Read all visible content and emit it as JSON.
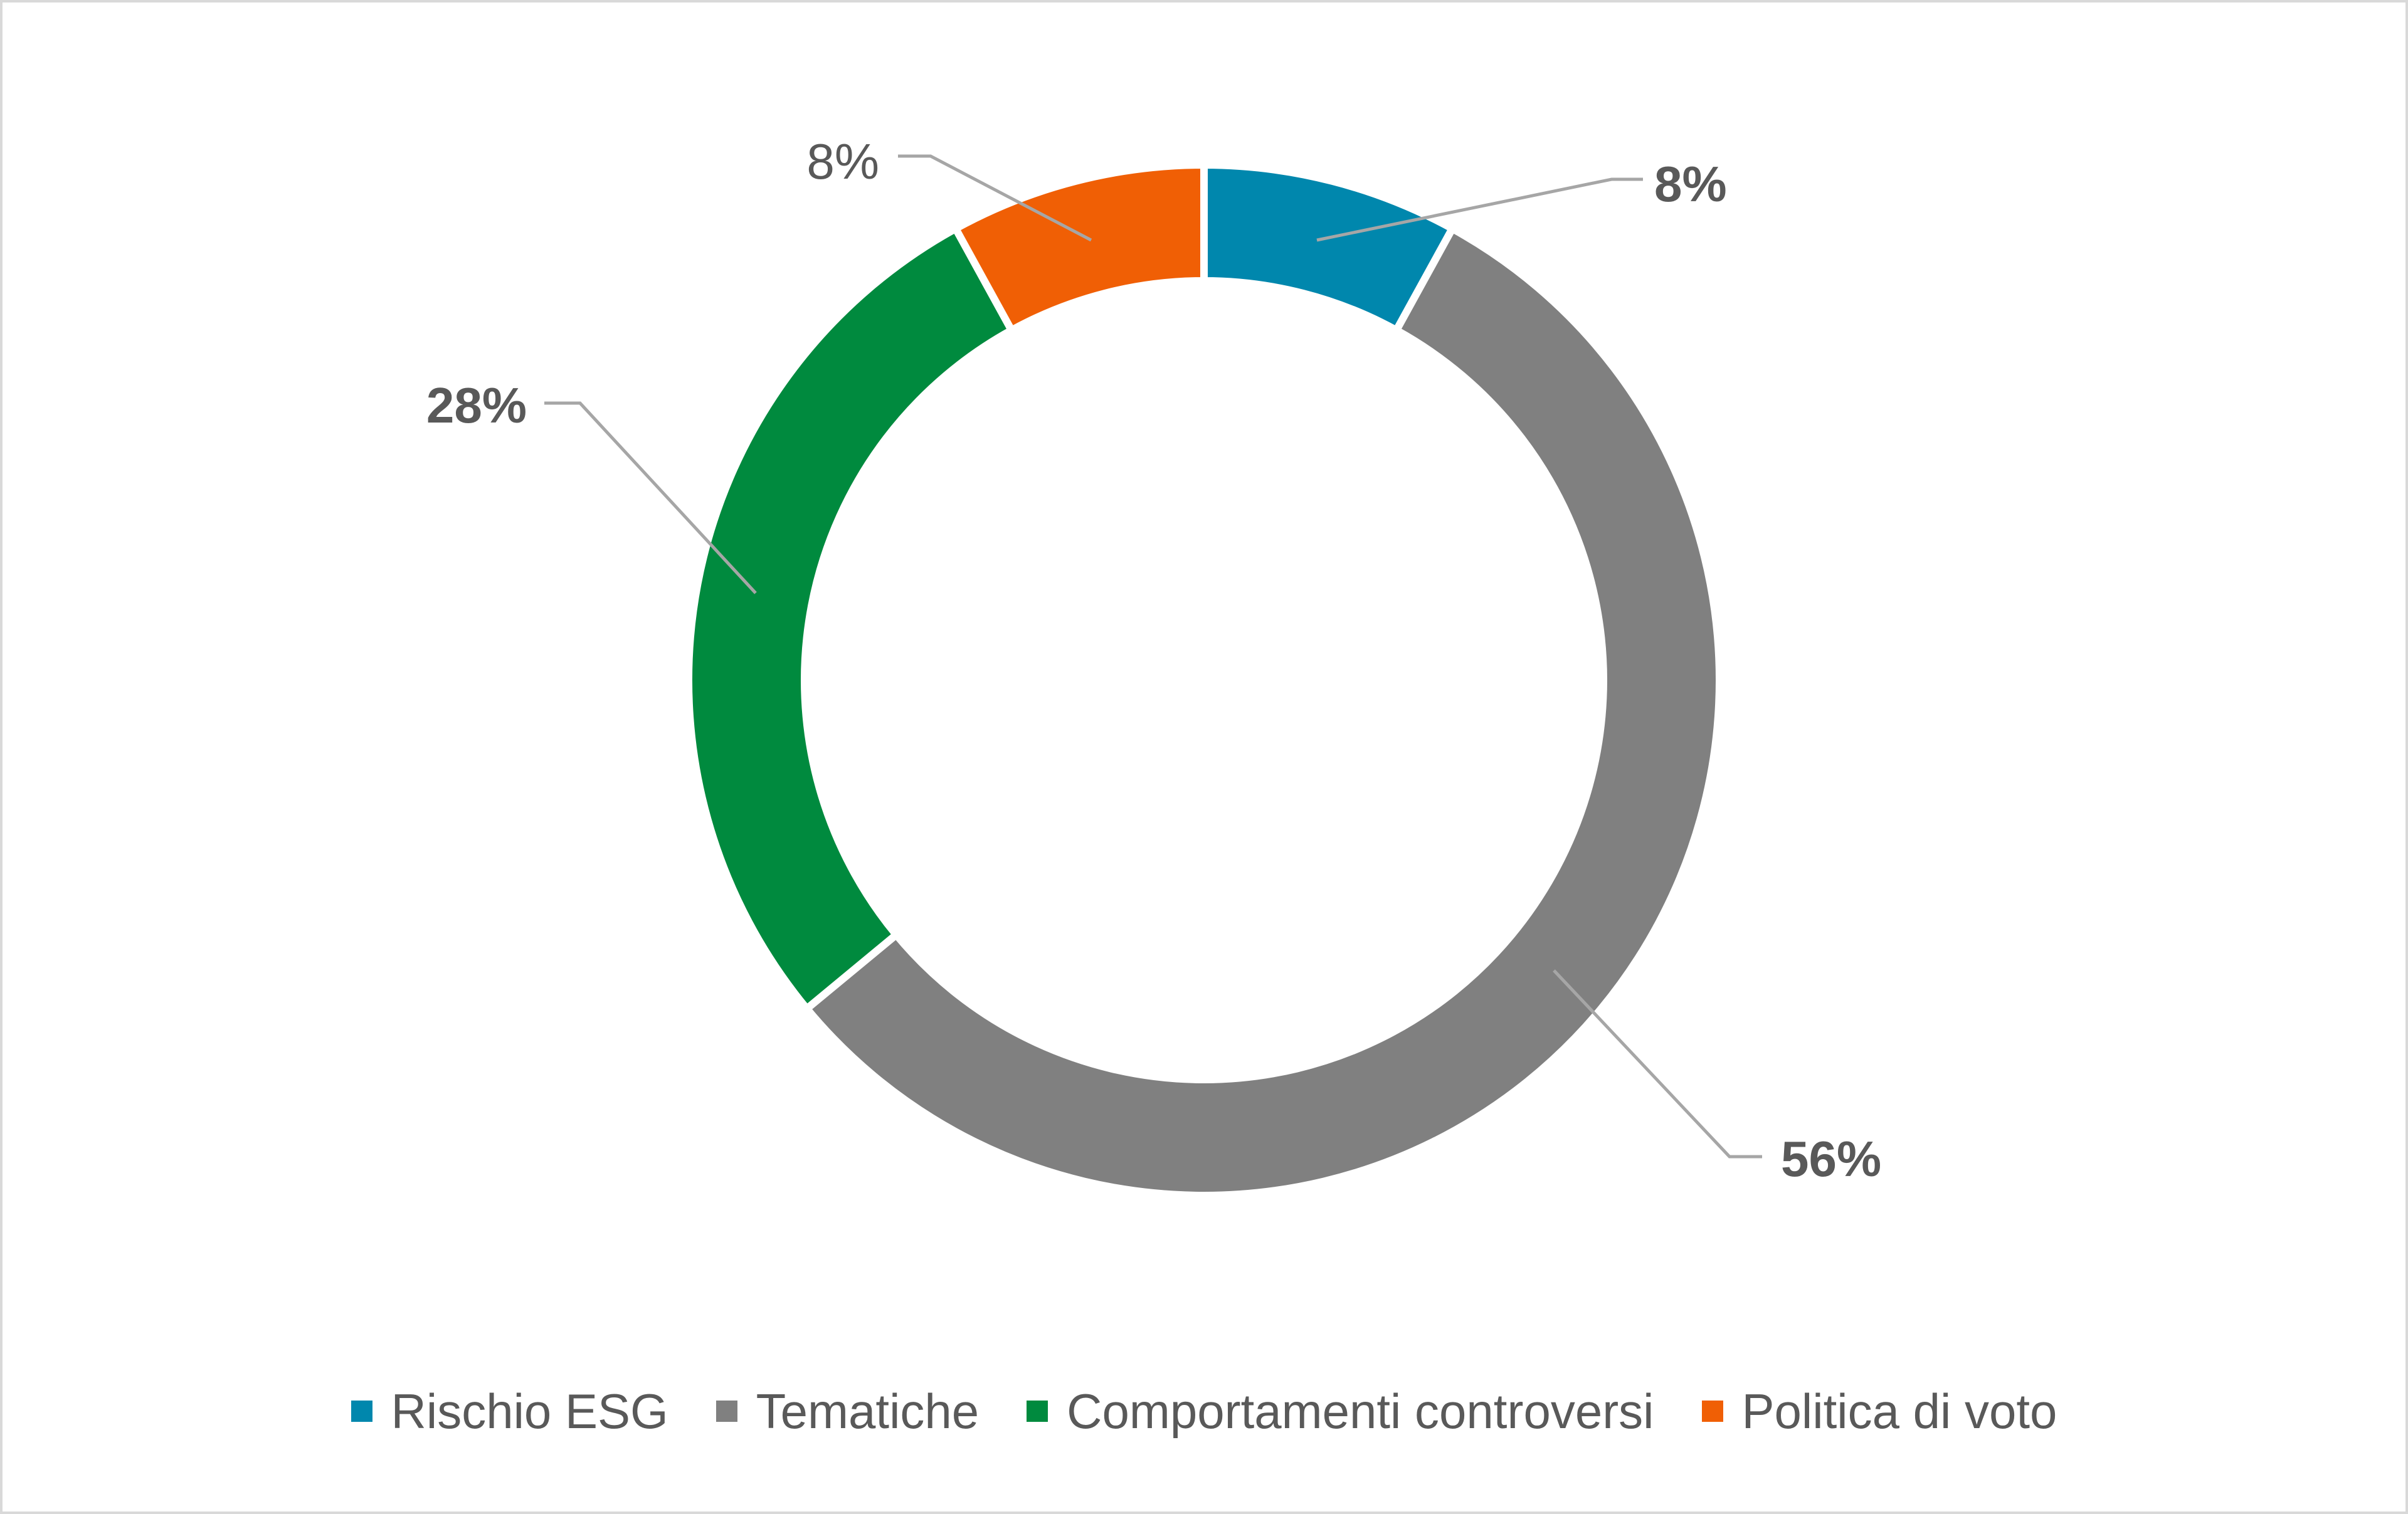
{
  "chart_data": {
    "type": "pie",
    "variant": "donut",
    "title": "",
    "categories": [
      "Rischio ESG",
      "Tematiche",
      "Comportamenti controversi",
      "Politica di voto"
    ],
    "values": [
      8,
      56,
      28,
      8
    ],
    "unit": "%",
    "data_labels": [
      "8%",
      "56%",
      "28%",
      "8%"
    ],
    "colors": [
      "#0087ad",
      "#808080",
      "#008a3e",
      "#f05f05"
    ],
    "legend_position": "bottom",
    "start_angle": "top",
    "direction": "clockwise"
  }
}
